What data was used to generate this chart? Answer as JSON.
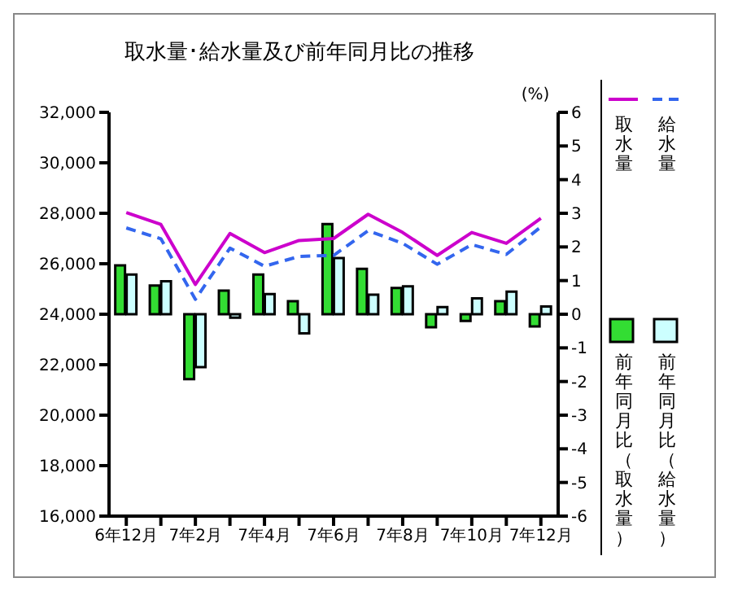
{
  "chart_data": {
    "type": "bar",
    "title": "取水量･給水量及び前年同月比の推移",
    "y2label": "(%)",
    "categories": [
      "6年12月",
      null,
      "7年2月",
      null,
      "7年4月",
      null,
      "7年6月",
      null,
      "7年8月",
      null,
      "7年10月",
      null,
      "7年12月"
    ],
    "series": [
      {
        "name": "取水量",
        "type": "line",
        "color": "#cc00cc",
        "line_style": "solid",
        "axis": "y",
        "values": [
          28030,
          27560,
          25180,
          27200,
          26440,
          26920,
          27000,
          27960,
          27240,
          26330,
          27240,
          26810,
          27800
        ]
      },
      {
        "name": "給水量",
        "type": "line",
        "color": "#3366ee",
        "line_style": "dashed",
        "axis": "y",
        "values": [
          27420,
          26990,
          24590,
          26620,
          25900,
          26290,
          26330,
          27310,
          26810,
          25980,
          26760,
          26370,
          27460
        ]
      },
      {
        "name": "前年同月比（取水量）",
        "type": "bar",
        "color": "#33dd33",
        "axis": "y2",
        "values": [
          1.45,
          0.85,
          -1.93,
          0.7,
          1.18,
          0.39,
          2.68,
          1.35,
          0.78,
          -0.39,
          -0.2,
          0.39,
          -0.36
        ]
      },
      {
        "name": "前年同月比（給水量）",
        "type": "bar",
        "color": "#ccffff",
        "axis": "y2",
        "values": [
          1.18,
          0.98,
          -1.57,
          -0.1,
          0.6,
          -0.57,
          1.67,
          0.58,
          0.83,
          0.21,
          0.47,
          0.67,
          0.23
        ]
      }
    ],
    "ylim": [
      16000,
      32000
    ],
    "yticks": [
      {
        "value": 16000,
        "label": "16,000"
      },
      {
        "value": 18000,
        "label": "18,000"
      },
      {
        "value": 20000,
        "label": "20,000"
      },
      {
        "value": 22000,
        "label": "22,000"
      },
      {
        "value": 24000,
        "label": "24,000"
      },
      {
        "value": 26000,
        "label": "26,000"
      },
      {
        "value": 28000,
        "label": "28,000"
      },
      {
        "value": 30000,
        "label": "30,000"
      },
      {
        "value": 32000,
        "label": "32,000"
      }
    ],
    "y2lim": [
      -6,
      6
    ],
    "y2ticks": [
      -6,
      -5,
      -4,
      -3,
      -2,
      -1,
      0,
      1,
      2,
      3,
      4,
      5,
      6
    ],
    "legend": "right",
    "grid": false,
    "marker": "none"
  }
}
